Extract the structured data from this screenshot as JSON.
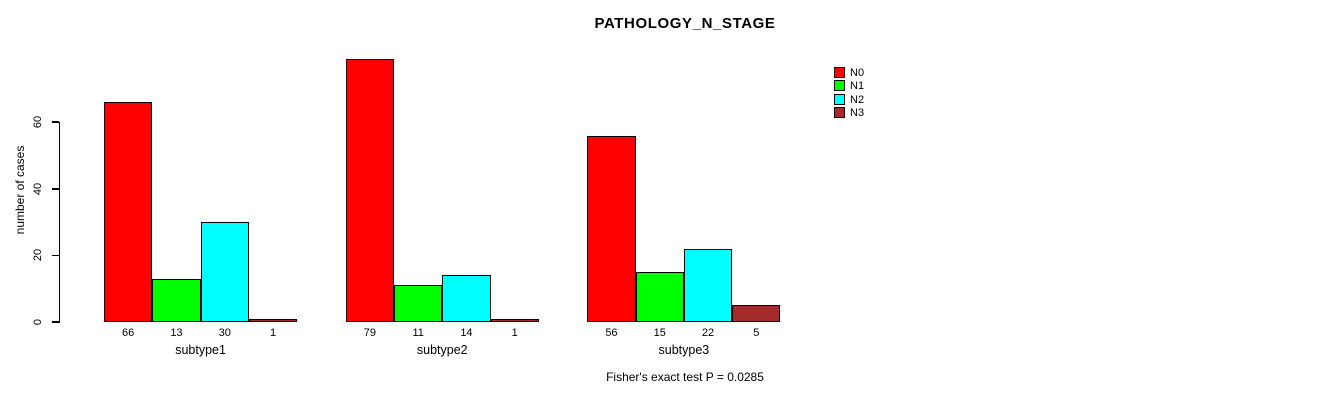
{
  "chart": {
    "title": "PATHOLOGY_N_STAGE",
    "ylabel": "number of cases",
    "footnote": "Fisher's exact test P = 0.0285",
    "legend": [
      {
        "label": "N0",
        "color": "#FF0000"
      },
      {
        "label": "N1",
        "color": "#00FF00"
      },
      {
        "label": "N2",
        "color": "#00FFFF"
      },
      {
        "label": "N3",
        "color": "#A52A2A"
      }
    ]
  },
  "chart_data": {
    "type": "bar",
    "grouped": true,
    "categories": [
      "subtype1",
      "subtype2",
      "subtype3"
    ],
    "series": [
      {
        "name": "N0",
        "color": "#FF0000",
        "values": [
          66,
          79,
          56
        ]
      },
      {
        "name": "N1",
        "color": "#00FF00",
        "values": [
          13,
          11,
          15
        ]
      },
      {
        "name": "N2",
        "color": "#00FFFF",
        "values": [
          30,
          14,
          22
        ]
      },
      {
        "name": "N3",
        "color": "#A52A2A",
        "values": [
          1,
          1,
          5
        ]
      }
    ],
    "title": "PATHOLOGY_N_STAGE",
    "xlabel": "",
    "ylabel": "number of cases",
    "yticks": [
      0,
      20,
      40,
      60
    ],
    "ylim": [
      0,
      80
    ],
    "grid": false,
    "bar_value_labels_shown": true,
    "legend_position": "top-right",
    "annotation": "Fisher's exact test P = 0.0285"
  }
}
